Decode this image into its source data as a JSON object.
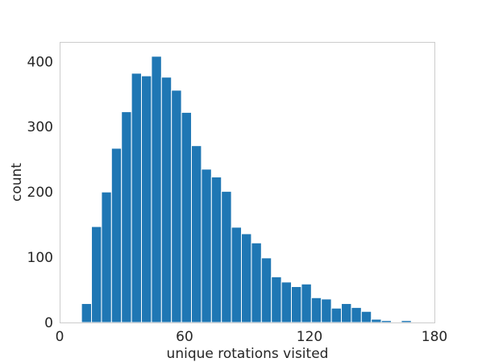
{
  "chart_data": {
    "type": "bar",
    "subtype": "histogram",
    "title": "",
    "xlabel": "unique rotations visited",
    "ylabel": "count",
    "xlim": [
      0,
      180
    ],
    "ylim": [
      0,
      430
    ],
    "xticks": [
      0,
      60,
      120,
      180
    ],
    "yticks": [
      0,
      100,
      200,
      300,
      400
    ],
    "grid": false,
    "legend": "none",
    "bar_color": "#1f77b4",
    "frame_color": "#cccccc",
    "bin_width": 4.8,
    "bins_start": 10.5,
    "values": [
      29,
      147,
      200,
      267,
      323,
      382,
      378,
      408,
      376,
      356,
      322,
      271,
      235,
      223,
      201,
      146,
      136,
      122,
      99,
      70,
      62,
      55,
      59,
      38,
      36,
      22,
      29,
      23,
      17,
      5,
      3,
      0,
      3
    ]
  }
}
